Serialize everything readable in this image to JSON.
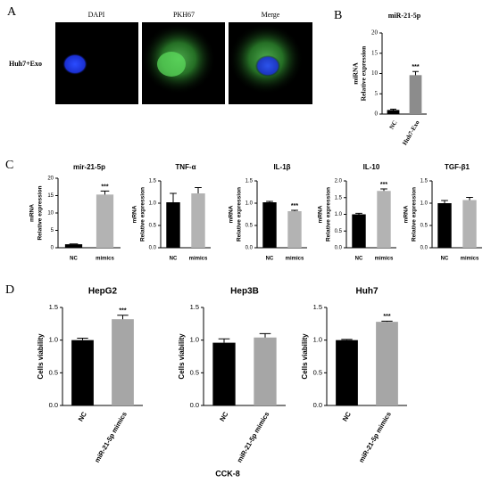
{
  "panel_labels": [
    "A",
    "B",
    "C",
    "D"
  ],
  "imaging": {
    "columns": [
      "DAPI",
      "PKH67",
      "Merge"
    ],
    "row_label": "Huh7+Exo"
  },
  "footer": "CCK-8",
  "chart_data": [
    {
      "type": "bar",
      "title": "miR-21-5p",
      "ylabel": [
        "miRNA",
        "Relative expression"
      ],
      "categories": [
        "NC",
        "Huh7-Exo"
      ],
      "values": [
        1,
        9.6
      ],
      "errors": [
        0.2,
        0.9
      ],
      "colors": [
        "#000000",
        "#8c8c8c"
      ],
      "ylim": [
        0,
        20
      ],
      "yticks": [
        0,
        5,
        10,
        15,
        20
      ],
      "annotations": [
        {
          "index": 1,
          "text": "***"
        }
      ]
    },
    {
      "type": "bar",
      "title": "mir-21-5p",
      "ylabel": [
        "mRNA",
        "Relative expression"
      ],
      "categories": [
        "NC",
        "mimics"
      ],
      "values": [
        1,
        15.3
      ],
      "errors": [
        0.1,
        1.0
      ],
      "colors": [
        "#000000",
        "#b3b3b3"
      ],
      "ylim": [
        0,
        20
      ],
      "yticks": [
        0,
        5,
        10,
        15,
        20
      ],
      "annotations": [
        {
          "index": 1,
          "text": "***"
        }
      ]
    },
    {
      "type": "bar",
      "title": "TNF-α",
      "ylabel": [
        "mRNA",
        "Relative expression"
      ],
      "categories": [
        "NC",
        "mimics"
      ],
      "values": [
        1.02,
        1.22
      ],
      "errors": [
        0.2,
        0.13
      ],
      "colors": [
        "#000000",
        "#b3b3b3"
      ],
      "ylim": [
        0,
        1.5
      ],
      "yticks": [
        {
          "value": 0,
          "label": "0.0"
        },
        {
          "value": 0.5,
          "label": "0.5"
        },
        {
          "value": 1,
          "label": "1.0"
        },
        {
          "value": 1.5,
          "label": "1.5"
        }
      ],
      "annotations": []
    },
    {
      "type": "bar",
      "title": "IL-1β",
      "ylabel": [
        "mRNA",
        "Relative expression"
      ],
      "categories": [
        "NC",
        "mimics"
      ],
      "values": [
        1.02,
        0.82
      ],
      "errors": [
        0.02,
        0.02
      ],
      "colors": [
        "#000000",
        "#b3b3b3"
      ],
      "ylim": [
        0,
        1.5
      ],
      "yticks": [
        {
          "value": 0,
          "label": "0.0"
        },
        {
          "value": 0.5,
          "label": "0.5"
        },
        {
          "value": 1,
          "label": "1.0"
        },
        {
          "value": 1.5,
          "label": "1.5"
        }
      ],
      "annotations": [
        {
          "index": 1,
          "text": "***"
        }
      ]
    },
    {
      "type": "bar",
      "title": "IL-10",
      "ylabel": [
        "mRNA",
        "Relative expression"
      ],
      "categories": [
        "NC",
        "mimics"
      ],
      "values": [
        1.0,
        1.7
      ],
      "errors": [
        0.03,
        0.06
      ],
      "colors": [
        "#000000",
        "#b3b3b3"
      ],
      "ylim": [
        0,
        2
      ],
      "yticks": [
        {
          "value": 0,
          "label": "0.0"
        },
        {
          "value": 0.5,
          "label": "0.5"
        },
        {
          "value": 1,
          "label": "1.0"
        },
        {
          "value": 1.5,
          "label": "1.5"
        },
        {
          "value": 2,
          "label": "2.0"
        }
      ],
      "annotations": [
        {
          "index": 1,
          "text": "***"
        }
      ]
    },
    {
      "type": "bar",
      "title": "TGF-β1",
      "ylabel": [
        "mRNA",
        "Relative expression"
      ],
      "categories": [
        "NC",
        "mimics"
      ],
      "values": [
        1.0,
        1.07
      ],
      "errors": [
        0.06,
        0.06
      ],
      "colors": [
        "#000000",
        "#b3b3b3"
      ],
      "ylim": [
        0,
        1.5
      ],
      "yticks": [
        {
          "value": 0,
          "label": "0.0"
        },
        {
          "value": 0.5,
          "label": "0.5"
        },
        {
          "value": 1,
          "label": "1.0"
        },
        {
          "value": 1.5,
          "label": "1.5"
        }
      ],
      "annotations": []
    },
    {
      "type": "bar",
      "title": "HepG2",
      "ylabel": [
        "Cells viability"
      ],
      "categories": [
        "NC",
        "miR-21-5p mimics"
      ],
      "values": [
        1.0,
        1.32
      ],
      "errors": [
        0.03,
        0.06
      ],
      "colors": [
        "#000000",
        "#a6a6a6"
      ],
      "ylim": [
        0,
        1.5
      ],
      "yticks": [
        {
          "value": 0,
          "label": "0.0"
        },
        {
          "value": 0.5,
          "label": "0.5"
        },
        {
          "value": 1,
          "label": "1.0"
        },
        {
          "value": 1.5,
          "label": "1.5"
        }
      ],
      "annotations": [
        {
          "index": 1,
          "text": "***"
        }
      ]
    },
    {
      "type": "bar",
      "title": "Hep3B",
      "ylabel": [
        "Cells viability"
      ],
      "categories": [
        "NC",
        "miR-21-5p mimics"
      ],
      "values": [
        0.96,
        1.04
      ],
      "errors": [
        0.06,
        0.06
      ],
      "colors": [
        "#000000",
        "#a6a6a6"
      ],
      "ylim": [
        0,
        1.5
      ],
      "yticks": [
        {
          "value": 0,
          "label": "0.0"
        },
        {
          "value": 0.5,
          "label": "0.5"
        },
        {
          "value": 1,
          "label": "1.0"
        },
        {
          "value": 1.5,
          "label": "1.5"
        }
      ],
      "annotations": []
    },
    {
      "type": "bar",
      "title": "Huh7",
      "ylabel": [
        "Cells viability"
      ],
      "categories": [
        "NC",
        "miR-21-5p mimics"
      ],
      "values": [
        1.0,
        1.28
      ],
      "errors": [
        0.01,
        0.01
      ],
      "colors": [
        "#000000",
        "#a6a6a6"
      ],
      "ylim": [
        0,
        1.5
      ],
      "yticks": [
        {
          "value": 0,
          "label": "0.0"
        },
        {
          "value": 0.5,
          "label": "0.5"
        },
        {
          "value": 1,
          "label": "1.0"
        },
        {
          "value": 1.5,
          "label": "1.5"
        }
      ],
      "annotations": [
        {
          "index": 1,
          "text": "***"
        }
      ]
    }
  ]
}
